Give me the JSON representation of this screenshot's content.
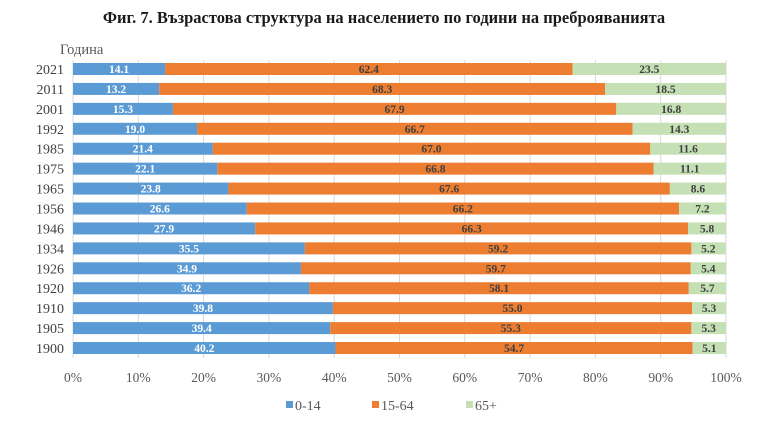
{
  "chart_data": {
    "type": "bar",
    "orientation": "horizontal",
    "stacked": "percent",
    "title": "Фиг. 7. Възрастова структура на населението по години на преброяванията",
    "ylabel": "Година",
    "xlabel": "",
    "categories": [
      "2021",
      "2011",
      "2001",
      "1992",
      "1985",
      "1975",
      "1965",
      "1956",
      "1946",
      "1934",
      "1926",
      "1920",
      "1910",
      "1905",
      "1900"
    ],
    "series": [
      {
        "name": "0-14",
        "color": "#5b9bd5",
        "label_color": "#ffffff",
        "values": [
          14.1,
          13.2,
          15.3,
          19.0,
          21.4,
          22.1,
          23.8,
          26.6,
          27.9,
          35.5,
          34.9,
          36.2,
          39.8,
          39.4,
          40.2
        ]
      },
      {
        "name": "15-64",
        "color": "#ed7d31",
        "label_color": "#404040",
        "values": [
          62.4,
          68.3,
          67.9,
          66.7,
          67.0,
          66.8,
          67.6,
          66.2,
          66.3,
          59.2,
          59.7,
          58.1,
          55.0,
          55.3,
          54.7
        ]
      },
      {
        "name": "65+",
        "color": "#c5e0b4",
        "label_color": "#404040",
        "values": [
          23.5,
          18.5,
          16.8,
          14.3,
          11.6,
          11.1,
          8.6,
          7.2,
          5.8,
          5.2,
          5.4,
          5.7,
          5.3,
          5.3,
          5.1
        ]
      }
    ],
    "xlim": [
      0,
      100
    ],
    "xticks": [
      "0%",
      "10%",
      "20%",
      "30%",
      "40%",
      "50%",
      "60%",
      "70%",
      "80%",
      "90%",
      "100%"
    ],
    "grid": true,
    "legend_position": "bottom"
  }
}
